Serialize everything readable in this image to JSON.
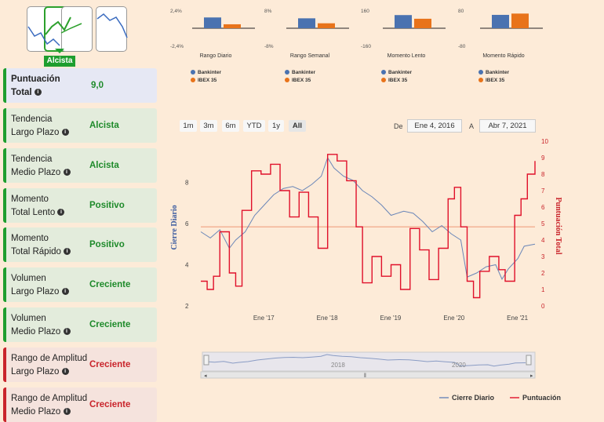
{
  "logo": {
    "label": "Alcista",
    "accent": "#1e9e2e"
  },
  "cards": [
    {
      "label1": "Puntuación",
      "label2": "Total",
      "value": "9,0",
      "kind": "total"
    },
    {
      "label1": "Tendencia",
      "label2": "Largo Plazo",
      "value": "Alcista",
      "kind": "green"
    },
    {
      "label1": "Tendencia",
      "label2": "Medio Plazo",
      "value": "Alcista",
      "kind": "green"
    },
    {
      "label1": "Momento",
      "label2": "Total Lento",
      "value": "Positivo",
      "kind": "green"
    },
    {
      "label1": "Momento",
      "label2": "Total Rápido",
      "value": "Positivo",
      "kind": "green"
    },
    {
      "label1": "Volumen",
      "label2": "Largo Plazo",
      "value": "Creciente",
      "kind": "green"
    },
    {
      "label1": "Volumen",
      "label2": "Medio Plazo",
      "value": "Creciente",
      "kind": "green"
    },
    {
      "label1": "Rango de Amplitud",
      "label2": "Largo Plazo",
      "value": "Creciente",
      "kind": "red"
    },
    {
      "label1": "Rango de Amplitud",
      "label2": "Medio Plazo",
      "value": "Creciente",
      "kind": "red"
    }
  ],
  "range_buttons": [
    "1m",
    "3m",
    "6m",
    "YTD",
    "1y",
    "All"
  ],
  "active_range": "All",
  "date_from_label": "De",
  "date_from": "Ene 4, 2016",
  "date_to_label": "A",
  "date_to": "Abr 7, 2021",
  "chart_data": [
    {
      "type": "bar",
      "title": "Rango Diario",
      "ticks": [
        "2,4%",
        "-2,4%"
      ],
      "ylim": [
        -2.4,
        2.4
      ],
      "series": [
        {
          "name": "Bankinter",
          "values": [
            1.5
          ]
        },
        {
          "name": "IBEX 35",
          "values": [
            0.55
          ]
        }
      ]
    },
    {
      "type": "bar",
      "title": "Rango Semanal",
      "ticks": [
        "8%",
        "-8%"
      ],
      "ylim": [
        -8,
        8
      ],
      "series": [
        {
          "name": "Bankinter",
          "values": [
            4.6
          ]
        },
        {
          "name": "IBEX 35",
          "values": [
            2.3
          ]
        }
      ]
    },
    {
      "type": "bar",
      "title": "Momento Lento",
      "ticks": [
        "160",
        "-160"
      ],
      "ylim": [
        -160,
        160
      ],
      "series": [
        {
          "name": "Bankinter",
          "values": [
            122
          ]
        },
        {
          "name": "IBEX 35",
          "values": [
            88
          ]
        }
      ]
    },
    {
      "type": "bar",
      "title": "Momento Rápido",
      "ticks": [
        "80",
        "-80"
      ],
      "ylim": [
        -80,
        80
      ],
      "series": [
        {
          "name": "Bankinter",
          "values": [
            62
          ]
        },
        {
          "name": "IBEX 35",
          "values": [
            68
          ]
        }
      ]
    },
    {
      "type": "line",
      "x_ticks": [
        "Ene '17",
        "Ene '18",
        "Ene '19",
        "Ene '20",
        "Ene '21"
      ],
      "y_left_ticks": [
        "2",
        "4",
        "6",
        "8"
      ],
      "ylim_left": [
        2,
        10
      ],
      "y_right_ticks": [
        "0",
        "1",
        "2",
        "3",
        "4",
        "5",
        "6",
        "7",
        "8",
        "9",
        "10"
      ],
      "ylim_right": [
        0,
        10
      ],
      "ylabel_left": "Cierre Diario",
      "ylabel_right": "Puntuación Total",
      "reference_line_value": 4.8,
      "series": [
        {
          "name": "Cierre Diario",
          "color": "#6a86b8",
          "points": [
            [
              2016.0,
              5.6
            ],
            [
              2016.15,
              5.3
            ],
            [
              2016.3,
              5.7
            ],
            [
              2016.45,
              4.8
            ],
            [
              2016.55,
              5.2
            ],
            [
              2016.7,
              5.6
            ],
            [
              2016.85,
              6.4
            ],
            [
              2017.0,
              6.9
            ],
            [
              2017.15,
              7.4
            ],
            [
              2017.3,
              7.7
            ],
            [
              2017.45,
              7.8
            ],
            [
              2017.6,
              7.6
            ],
            [
              2017.75,
              7.9
            ],
            [
              2017.9,
              8.3
            ],
            [
              2018.0,
              9.2
            ],
            [
              2018.1,
              8.7
            ],
            [
              2018.25,
              8.3
            ],
            [
              2018.4,
              8.1
            ],
            [
              2018.55,
              7.6
            ],
            [
              2018.7,
              7.3
            ],
            [
              2018.85,
              6.9
            ],
            [
              2019.0,
              6.4
            ],
            [
              2019.2,
              6.6
            ],
            [
              2019.35,
              6.5
            ],
            [
              2019.5,
              6.1
            ],
            [
              2019.65,
              5.6
            ],
            [
              2019.8,
              5.9
            ],
            [
              2019.95,
              5.5
            ],
            [
              2020.1,
              5.2
            ],
            [
              2020.2,
              3.4
            ],
            [
              2020.35,
              3.6
            ],
            [
              2020.5,
              3.9
            ],
            [
              2020.65,
              4.0
            ],
            [
              2020.75,
              3.3
            ],
            [
              2020.85,
              3.8
            ],
            [
              2021.0,
              4.3
            ],
            [
              2021.1,
              4.9
            ],
            [
              2021.27,
              5.0
            ]
          ]
        },
        {
          "name": "Puntuación",
          "color": "#e0102a",
          "points": [
            [
              2016.0,
              1.5
            ],
            [
              2016.1,
              1.0
            ],
            [
              2016.2,
              1.8
            ],
            [
              2016.3,
              4.5
            ],
            [
              2016.45,
              2.0
            ],
            [
              2016.55,
              1.2
            ],
            [
              2016.65,
              5.8
            ],
            [
              2016.8,
              8.2
            ],
            [
              2016.95,
              8.0
            ],
            [
              2017.1,
              8.6
            ],
            [
              2017.25,
              7.0
            ],
            [
              2017.4,
              5.4
            ],
            [
              2017.55,
              6.9
            ],
            [
              2017.7,
              5.4
            ],
            [
              2017.85,
              3.5
            ],
            [
              2018.0,
              9.2
            ],
            [
              2018.15,
              8.8
            ],
            [
              2018.3,
              7.6
            ],
            [
              2018.45,
              4.8
            ],
            [
              2018.55,
              1.4
            ],
            [
              2018.7,
              3.0
            ],
            [
              2018.85,
              1.8
            ],
            [
              2019.0,
              2.5
            ],
            [
              2019.15,
              1.0
            ],
            [
              2019.3,
              4.7
            ],
            [
              2019.45,
              3.4
            ],
            [
              2019.6,
              1.6
            ],
            [
              2019.75,
              3.5
            ],
            [
              2019.9,
              6.5
            ],
            [
              2020.0,
              7.2
            ],
            [
              2020.1,
              4.8
            ],
            [
              2020.2,
              1.5
            ],
            [
              2020.3,
              0.5
            ],
            [
              2020.4,
              2.1
            ],
            [
              2020.55,
              3.0
            ],
            [
              2020.7,
              2.2
            ],
            [
              2020.8,
              1.5
            ],
            [
              2020.95,
              5.5
            ],
            [
              2021.05,
              6.5
            ],
            [
              2021.15,
              8.0
            ],
            [
              2021.27,
              8.8
            ]
          ]
        }
      ],
      "navigator_ticks": [
        "2018",
        "2020"
      ],
      "legend": [
        "Cierre Diario",
        "Puntuación"
      ]
    }
  ]
}
